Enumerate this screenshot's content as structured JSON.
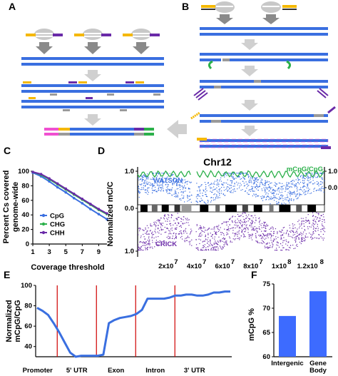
{
  "panels": {
    "A": "A",
    "B": "B",
    "C": "C",
    "D": "D",
    "E": "E",
    "F": "F"
  },
  "colors": {
    "blue": "#3a6fe0",
    "green": "#2bb04a",
    "purple": "#6a2aa8",
    "yellow": "#f5b800",
    "gray": "#9a9a9a",
    "pink": "#f050d0",
    "red": "#d00000"
  },
  "chart_data": [
    {
      "id": "C",
      "type": "line",
      "xlabel": "Coverage threshold",
      "ylabel": "Percent Cs covered genome-wide",
      "ylabel_lines": [
        "Percent Cs covered",
        "genome-wide"
      ],
      "xticks": [
        "1",
        "3",
        "5",
        "7",
        "9"
      ],
      "yticks": [
        "0",
        "20",
        "40",
        "60",
        "80",
        "100"
      ],
      "xlim": [
        1,
        10
      ],
      "ylim": [
        0,
        100
      ],
      "x": [
        1,
        2,
        3,
        4,
        5,
        6,
        7,
        8,
        9,
        10
      ],
      "series": [
        {
          "name": "CpG",
          "values": [
            98,
            93,
            86,
            78,
            71,
            63,
            56,
            48,
            41,
            34
          ]
        },
        {
          "name": "CHG",
          "values": [
            99,
            95,
            89,
            82,
            75,
            68,
            61,
            54,
            47,
            41
          ]
        },
        {
          "name": "CHH",
          "values": [
            99,
            96,
            90,
            83,
            76,
            69,
            62,
            55,
            48,
            42
          ]
        }
      ]
    },
    {
      "id": "D",
      "type": "scatter",
      "title": "Chr12",
      "ylabel": "Normalized mC/C",
      "series_labels": [
        "WATSON",
        "CRICK"
      ],
      "line_label": "mCpG/CpG",
      "yticks_left": [
        "1.0",
        "0.0",
        "1.0"
      ],
      "yticks_right": [
        "1.0",
        "0.0"
      ],
      "xticks": [
        "2x10",
        "4x10",
        "6x10",
        "8x10",
        "1x10",
        "1.2x10"
      ],
      "xtick_exps": [
        "7",
        "7",
        "7",
        "7",
        "8",
        "8"
      ],
      "xtick_values": [
        20000000,
        40000000,
        60000000,
        80000000,
        100000000,
        120000000
      ],
      "xlim": [
        0,
        132000000
      ]
    },
    {
      "id": "E",
      "type": "line",
      "ylabel": "Normalized mCpG/CpG",
      "ylabel_lines": [
        "Normalized",
        "mCpG/CpG"
      ],
      "yticks": [
        "40",
        "60",
        "80",
        "100"
      ],
      "ylim": [
        30,
        100
      ],
      "categories": [
        "Promoter",
        "5' UTR",
        "Exon",
        "Intron",
        "3' UTR"
      ],
      "profile": [
        78,
        75,
        71,
        63,
        54,
        44,
        34,
        30,
        31,
        31,
        31,
        31,
        32,
        63,
        66,
        68,
        69,
        70,
        72,
        76,
        87,
        87,
        87,
        87,
        88,
        90,
        90,
        91,
        91,
        90,
        90,
        91,
        93,
        93,
        94,
        94
      ]
    },
    {
      "id": "F",
      "type": "bar",
      "ylabel": "mCpG %",
      "yticks": [
        "60",
        "65",
        "70",
        "75"
      ],
      "ylim": [
        60,
        75
      ],
      "categories": [
        "Intergenic",
        "Gene Body"
      ],
      "category_lines": [
        [
          "Intergenic"
        ],
        [
          "Gene",
          "Body"
        ]
      ],
      "values": [
        68.4,
        73.5
      ]
    }
  ]
}
